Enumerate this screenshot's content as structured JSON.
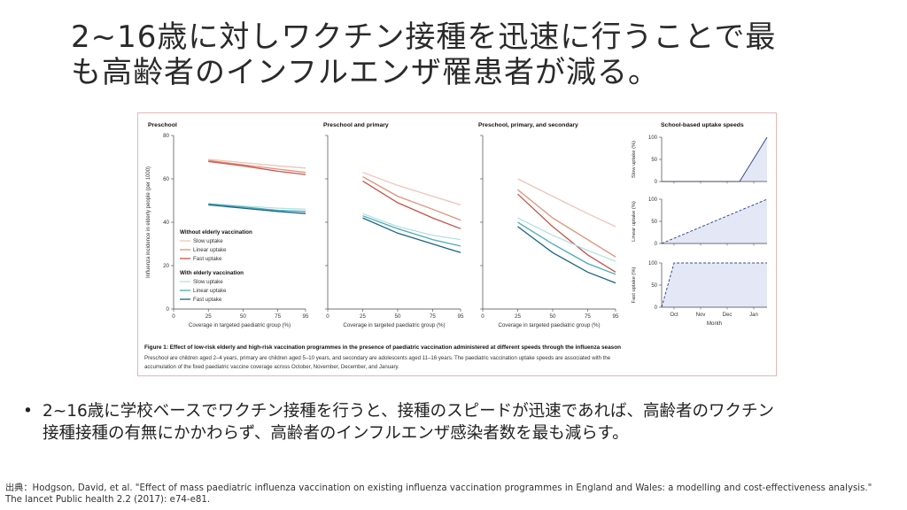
{
  "slide": {
    "title_line1": "2~16歳に対しワクチン接種を迅速に行うことで最",
    "title_line2": "も高齢者のインフルエンザ罹患者が減る。",
    "bullet_mark": "•",
    "bullet_line1": "2~16歳に学校ベースでワクチン接種を行うと、接種のスピードが迅速であれば、高齢者のワクチン",
    "bullet_line2": "接種接種の有無にかかわらず、高齢者のインフルエンザ感染者数を最も減らす。",
    "source_line1": "出典：Hodgson, David, et al. \"Effect of mass paediatric influenza vaccination on existing influenza vaccination programmes in England and Wales: a modelling and cost-effectiveness analysis.\"",
    "source_line2": "The lancet Public health 2.2 (2017): e74-e81."
  },
  "figure": {
    "caption_bold": "Figure 1: Effect of low-risk elderly and high-risk vaccination programmes in the presence of paediatric vaccination administered at different speeds through the influenza season",
    "caption_line1": "Preschool are children aged 2–4 years, primary are children aged 5–10 years, and secondary are adolescents aged 11–16 years. The paediatric vaccination uptake speeds are associated with the",
    "caption_line2": "accumulation of the fixed paediatric vaccine coverage across October, November, December, and January."
  },
  "colors": {
    "without_slow": "#f0c4b6",
    "without_linear": "#e0907a",
    "without_fast": "#c8524a",
    "with_slow": "#b4e2df",
    "with_linear": "#4aa8b8",
    "with_fast": "#1a6488",
    "uptake_fill": "#e4e8f6",
    "uptake_line": "#3a4a8a"
  },
  "chart_data": [
    {
      "type": "line",
      "title": "Preschool",
      "xlabel": "Coverage in targeted paediatric group (%)",
      "ylabel": "Influenza incidence in elderly people (per 1000)",
      "ylim": [
        0,
        80
      ],
      "yticks": [
        "0",
        "20",
        "40",
        "60",
        "80"
      ],
      "xticks": [
        "0",
        "25",
        "50",
        "75",
        "95"
      ],
      "x": [
        25,
        50,
        75,
        95
      ],
      "legend": {
        "group1": "Without elderly vaccination",
        "group2": "With elderly vaccination",
        "entries": [
          "Slow uptake",
          "Linear uptake",
          "Fast uptake",
          "Slow uptake",
          "Linear uptake",
          "Fast uptake"
        ]
      },
      "series": [
        {
          "values": [
            69,
            67.5,
            66,
            65
          ],
          "color_key": "without_slow"
        },
        {
          "values": [
            68.5,
            66.5,
            64.5,
            63
          ],
          "color_key": "without_linear"
        },
        {
          "values": [
            68,
            66,
            63.5,
            62
          ],
          "color_key": "without_fast"
        },
        {
          "values": [
            48.5,
            47.5,
            46.5,
            46
          ],
          "color_key": "with_slow"
        },
        {
          "values": [
            48.5,
            47,
            45.5,
            45
          ],
          "color_key": "with_linear"
        },
        {
          "values": [
            48,
            46.5,
            45,
            44
          ],
          "color_key": "with_fast"
        }
      ]
    },
    {
      "type": "line",
      "title": "Preschool and primary",
      "xlabel": "Coverage in targeted paediatric group (%)",
      "ylim": [
        0,
        80
      ],
      "xticks": [
        "0",
        "25",
        "50",
        "75",
        "95"
      ],
      "x": [
        25,
        50,
        75,
        95
      ],
      "series": [
        {
          "values": [
            63,
            57,
            52,
            48
          ],
          "color_key": "without_slow"
        },
        {
          "values": [
            61,
            52,
            46,
            41
          ],
          "color_key": "without_linear"
        },
        {
          "values": [
            59,
            49,
            42,
            37
          ],
          "color_key": "without_fast"
        },
        {
          "values": [
            44,
            38,
            34,
            32
          ],
          "color_key": "with_slow"
        },
        {
          "values": [
            43,
            37,
            32,
            29
          ],
          "color_key": "with_linear"
        },
        {
          "values": [
            42,
            35,
            30,
            26
          ],
          "color_key": "with_fast"
        }
      ]
    },
    {
      "type": "line",
      "title": "Preschool, primary, and secondary",
      "xlabel": "Coverage in targeted paediatric group (%)",
      "ylim": [
        0,
        80
      ],
      "xticks": [
        "0",
        "25",
        "50",
        "75",
        "95"
      ],
      "x": [
        25,
        50,
        75,
        95
      ],
      "series": [
        {
          "values": [
            60,
            52,
            44,
            38
          ],
          "color_key": "without_slow"
        },
        {
          "values": [
            55,
            42,
            32,
            24
          ],
          "color_key": "without_linear"
        },
        {
          "values": [
            53,
            38,
            25,
            17
          ],
          "color_key": "without_fast"
        },
        {
          "values": [
            42,
            34,
            27,
            22
          ],
          "color_key": "with_slow"
        },
        {
          "values": [
            40,
            30,
            21,
            16
          ],
          "color_key": "with_linear"
        },
        {
          "values": [
            38,
            26,
            17,
            12
          ],
          "color_key": "with_fast"
        }
      ]
    },
    {
      "type": "area",
      "title": "School-based uptake speeds",
      "xlabel": "Month",
      "categories": [
        "Oct",
        "Nov",
        "Dec",
        "Jan"
      ],
      "panels": [
        {
          "ylabel": "Slow uptake (%)",
          "ylim": [
            0,
            100
          ],
          "yticks": [
            "0",
            "50",
            "100"
          ],
          "points": [
            [
              "start",
              0
            ],
            [
              "Oct",
              0
            ],
            [
              "Nov",
              0
            ],
            [
              "Dec",
              0
            ],
            [
              "dec_end",
              0
            ],
            [
              "end",
              100
            ]
          ],
          "dashed": false
        },
        {
          "ylabel": "Linear uptake (%)",
          "ylim": [
            0,
            100
          ],
          "yticks": [
            "0",
            "50",
            "100"
          ],
          "points": [
            [
              "start",
              0
            ],
            [
              "end",
              100
            ]
          ],
          "dashed": true
        },
        {
          "ylabel": "Fast uptake (%)",
          "ylim": [
            0,
            100
          ],
          "yticks": [
            "0",
            "50",
            "100"
          ],
          "points": [
            [
              "start",
              0
            ],
            [
              "oct_end",
              100
            ],
            [
              "end",
              100
            ]
          ],
          "dashed": true
        }
      ]
    }
  ]
}
